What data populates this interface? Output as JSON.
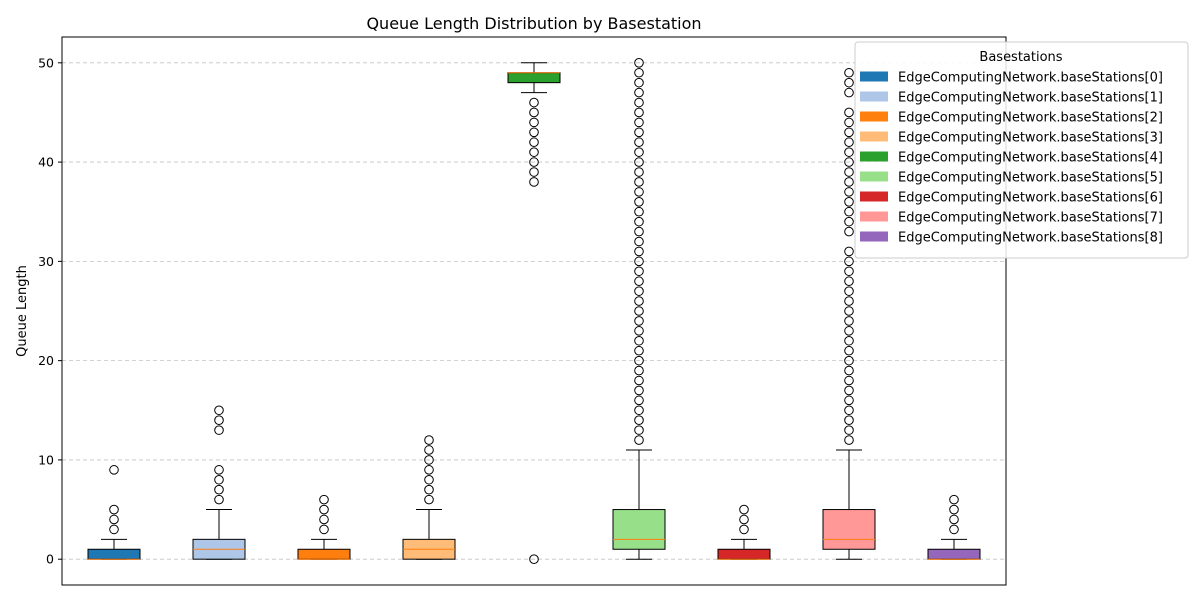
{
  "chart_data": {
    "type": "box",
    "title": "Queue Length Distribution by Basestation",
    "xlabel": "",
    "ylabel": "Queue Length",
    "ylim": [
      -2.6,
      52.6
    ],
    "yticks": [
      0,
      10,
      20,
      30,
      40,
      50
    ],
    "grid": "y-dashed",
    "legend": {
      "title": "Basestations",
      "placement": "top-right"
    },
    "median_color": "#ff7f0e",
    "series": [
      {
        "name": "EdgeComputingNetwork.baseStations[0]",
        "color": "#1f77b4",
        "q1": 0,
        "median": 0,
        "q3": 1,
        "whisker_low": 0,
        "whisker_high": 2,
        "outliers": [
          3,
          4,
          5,
          9
        ]
      },
      {
        "name": "EdgeComputingNetwork.baseStations[1]",
        "color": "#aec7e8",
        "q1": 0,
        "median": 1,
        "q3": 2,
        "whisker_low": 0,
        "whisker_high": 5,
        "outliers": [
          6,
          7,
          8,
          9,
          13,
          14,
          15
        ]
      },
      {
        "name": "EdgeComputingNetwork.baseStations[2]",
        "color": "#ff7f0e",
        "q1": 0,
        "median": 0,
        "q3": 1,
        "whisker_low": 0,
        "whisker_high": 2,
        "outliers": [
          3,
          4,
          5,
          6
        ]
      },
      {
        "name": "EdgeComputingNetwork.baseStations[3]",
        "color": "#ffbb78",
        "q1": 0,
        "median": 1,
        "q3": 2,
        "whisker_low": 0,
        "whisker_high": 5,
        "outliers": [
          6,
          7,
          8,
          9,
          10,
          11,
          12
        ]
      },
      {
        "name": "EdgeComputingNetwork.baseStations[4]",
        "color": "#2ca02c",
        "q1": 48,
        "median": 49,
        "q3": 49,
        "whisker_low": 47,
        "whisker_high": 50,
        "outliers": [
          0,
          38,
          39,
          40,
          41,
          42,
          43,
          44,
          45,
          46
        ]
      },
      {
        "name": "EdgeComputingNetwork.baseStations[5]",
        "color": "#98df8a",
        "q1": 1,
        "median": 2,
        "q3": 5,
        "whisker_low": 0,
        "whisker_high": 11,
        "outliers": [
          12,
          13,
          14,
          15,
          16,
          17,
          18,
          19,
          20,
          21,
          22,
          23,
          24,
          25,
          26,
          27,
          28,
          29,
          30,
          31,
          32,
          33,
          34,
          35,
          36,
          37,
          38,
          39,
          40,
          41,
          42,
          43,
          44,
          45,
          46,
          47,
          48,
          49,
          50
        ]
      },
      {
        "name": "EdgeComputingNetwork.baseStations[6]",
        "color": "#d62728",
        "q1": 0,
        "median": 0,
        "q3": 1,
        "whisker_low": 0,
        "whisker_high": 2,
        "outliers": [
          3,
          4,
          5
        ]
      },
      {
        "name": "EdgeComputingNetwork.baseStations[7]",
        "color": "#ff9896",
        "q1": 1,
        "median": 2,
        "q3": 5,
        "whisker_low": 0,
        "whisker_high": 11,
        "outliers": [
          12,
          13,
          14,
          15,
          16,
          17,
          18,
          19,
          20,
          21,
          22,
          23,
          24,
          25,
          26,
          27,
          28,
          29,
          30,
          31,
          33,
          34,
          35,
          36,
          37,
          38,
          39,
          40,
          41,
          42,
          43,
          44,
          45,
          47,
          48,
          49
        ]
      },
      {
        "name": "EdgeComputingNetwork.baseStations[8]",
        "color": "#9467bd",
        "q1": 0,
        "median": 0,
        "q3": 1,
        "whisker_low": 0,
        "whisker_high": 2,
        "outliers": [
          3,
          4,
          5,
          6
        ]
      }
    ]
  }
}
